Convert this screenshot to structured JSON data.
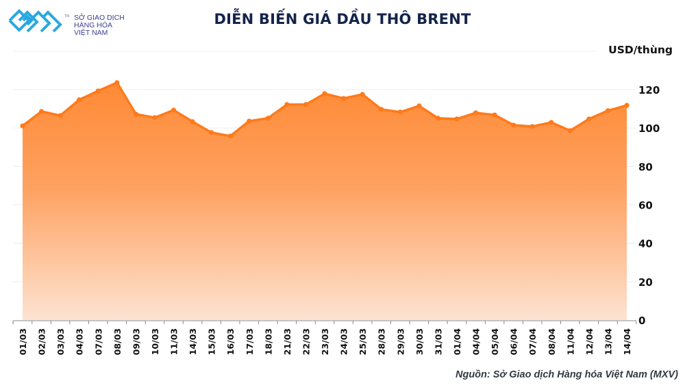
{
  "header": {
    "logo_lines": [
      "SỞ GIAO DỊCH",
      "HÀNG HÓA",
      "VIỆT NAM"
    ],
    "logo_tm": "TM",
    "title": "DIỄN BIẾN GIÁ DẦU THÔ BRENT"
  },
  "footer": {
    "source": "Nguồn: Sở Giao dịch Hàng hóa Việt Nam (MXV)"
  },
  "colors": {
    "line": "#ff7a1a",
    "fill_top": "#ff8c3a",
    "fill_bottom": "#fde3d2",
    "title": "#14244a",
    "logo": "#29a8e0"
  },
  "chart_data": {
    "type": "area",
    "title": "DIỄN BIẾN GIÁ DẦU THÔ BRENT",
    "xlabel": "",
    "ylabel": "USD/thùng",
    "ylim": [
      0,
      120
    ],
    "yticks": [
      0,
      20,
      40,
      60,
      80,
      100,
      120
    ],
    "grid": true,
    "legend": "none",
    "y_axis_position": "right",
    "categories": [
      "01/03",
      "02/03",
      "03/03",
      "04/03",
      "07/03",
      "08/03",
      "09/03",
      "10/03",
      "11/03",
      "14/03",
      "15/03",
      "16/03",
      "17/03",
      "18/03",
      "21/03",
      "22/03",
      "23/03",
      "24/03",
      "25/03",
      "28/03",
      "29/03",
      "30/03",
      "31/03",
      "01/04",
      "04/04",
      "05/04",
      "06/04",
      "07/04",
      "08/04",
      "11/04",
      "12/04",
      "13/04",
      "14/04"
    ],
    "series": [
      {
        "name": "Brent",
        "values": [
          101.1,
          108.6,
          106.5,
          114.7,
          119.3,
          123.6,
          107.2,
          105.4,
          109.3,
          103.3,
          97.6,
          95.8,
          103.6,
          105.1,
          112.2,
          112.2,
          117.9,
          115.4,
          117.5,
          109.7,
          108.3,
          111.5,
          105.1,
          104.7,
          107.9,
          106.8,
          101.5,
          100.8,
          102.9,
          98.6,
          104.7,
          109.0,
          111.8
        ]
      }
    ],
    "source": "Nguồn: Sở Giao dịch Hàng hóa Việt Nam (MXV)"
  }
}
